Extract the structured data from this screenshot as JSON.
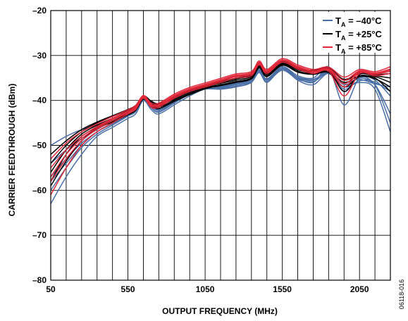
{
  "chart_data": {
    "type": "line",
    "title": "",
    "xlabel": "OUTPUT FREQUENCY (MHz)",
    "ylabel": "CARRIER FEEDTHROUGH (dBm)",
    "xlim": [
      50,
      2250
    ],
    "ylim": [
      -80,
      -20
    ],
    "x_ticks": [
      50,
      550,
      1050,
      1550,
      2050
    ],
    "x_tick_labels": [
      "50",
      "550",
      "1050",
      "1550",
      "2050"
    ],
    "x_minor_step": 100,
    "y_ticks": [
      -80,
      -70,
      -60,
      -50,
      -40,
      -30,
      -20
    ],
    "y_tick_labels": [
      "–80",
      "–70",
      "–60",
      "–50",
      "–40",
      "–30",
      "–20"
    ],
    "grid": true,
    "legend_position": "top-right",
    "figure_id": "06118-016",
    "legend": [
      {
        "base": "T",
        "sub": "A",
        "text": " = –40°C",
        "color": "#4a6fa5"
      },
      {
        "base": "T",
        "sub": "A",
        "text": " = +25°C",
        "color": "#000000"
      },
      {
        "base": "T",
        "sub": "A",
        "text": " = +85°C",
        "color": "#e0283a"
      }
    ],
    "series": [
      {
        "group": "–40°C",
        "color": "#4a6fa5",
        "x": [
          50,
          150,
          250,
          350,
          450,
          550,
          600,
          650,
          700,
          750,
          850,
          950,
          1050,
          1150,
          1250,
          1350,
          1400,
          1450,
          1550,
          1650,
          1750,
          1850,
          1950,
          2050,
          2150,
          2250
        ],
        "curves": [
          [
            -63,
            -57,
            -52,
            -48,
            -46,
            -44,
            -43,
            -40,
            -42,
            -43,
            -41,
            -39,
            -37.5,
            -37.5,
            -37,
            -36,
            -33.5,
            -36,
            -33,
            -35.5,
            -36.5,
            -34,
            -37,
            -36,
            -37.5,
            -47
          ],
          [
            -60,
            -55,
            -50.5,
            -47.5,
            -45.5,
            -43.5,
            -42.5,
            -39.5,
            -41.5,
            -42.5,
            -40.5,
            -38.5,
            -37,
            -37,
            -36.5,
            -35.5,
            -33,
            -35.5,
            -32.5,
            -35,
            -36,
            -33,
            -41,
            -35,
            -36.5,
            -43
          ],
          [
            -57,
            -53,
            -49.5,
            -47,
            -45,
            -43,
            -42,
            -39.5,
            -41,
            -42,
            -40,
            -38,
            -36.8,
            -36.8,
            -36.2,
            -35.2,
            -33,
            -35.2,
            -32.5,
            -34.5,
            -35,
            -32.5,
            -38,
            -34.5,
            -35.5,
            -39
          ],
          [
            -54,
            -51,
            -48.5,
            -46.5,
            -44.5,
            -43,
            -42,
            -39.8,
            -41.2,
            -42.2,
            -40.3,
            -38.3,
            -37,
            -37.2,
            -36.5,
            -35.5,
            -33.3,
            -35.5,
            -33,
            -35,
            -35.5,
            -33.5,
            -36.5,
            -35,
            -36,
            -38
          ],
          [
            -50,
            -48,
            -46.5,
            -45.5,
            -44,
            -42.5,
            -41.5,
            -39.5,
            -41,
            -42,
            -40,
            -38,
            -36.8,
            -37,
            -36.3,
            -35.3,
            -33,
            -35.3,
            -32.8,
            -34.8,
            -35.3,
            -33.8,
            -36,
            -35.3,
            -36.3,
            -37
          ],
          [
            -58,
            -54,
            -50,
            -47,
            -45.2,
            -43.3,
            -42.3,
            -40,
            -41.6,
            -42.6,
            -40.6,
            -38.6,
            -37.3,
            -37.4,
            -36.8,
            -35.8,
            -33.8,
            -35.8,
            -33.3,
            -35.3,
            -35.8,
            -34,
            -37.5,
            -35.6,
            -36.6,
            -45
          ]
        ]
      },
      {
        "group": "+25°C",
        "color": "#000000",
        "x": [
          50,
          150,
          250,
          350,
          450,
          550,
          600,
          650,
          700,
          750,
          850,
          950,
          1050,
          1150,
          1250,
          1350,
          1400,
          1450,
          1550,
          1650,
          1750,
          1850,
          1950,
          2050,
          2150,
          2250
        ],
        "curves": [
          [
            -58,
            -52,
            -48,
            -46,
            -44.5,
            -43,
            -42,
            -39.5,
            -41,
            -41.5,
            -40,
            -38.5,
            -37.2,
            -36.5,
            -35.8,
            -35,
            -32.5,
            -34.5,
            -32,
            -33.5,
            -34,
            -33.5,
            -36,
            -34.5,
            -35,
            -38
          ],
          [
            -56,
            -51,
            -47.5,
            -45.5,
            -44,
            -42.5,
            -41.6,
            -39.3,
            -40.6,
            -41.2,
            -39.7,
            -38.2,
            -37,
            -36.2,
            -35.5,
            -34.7,
            -32.3,
            -34.2,
            -31.8,
            -33.2,
            -33.7,
            -33.2,
            -38,
            -34.2,
            -34.7,
            -36
          ],
          [
            -54,
            -50,
            -47,
            -45,
            -43.6,
            -42.2,
            -41.3,
            -39.1,
            -40.3,
            -40.9,
            -39.4,
            -38,
            -36.8,
            -36,
            -35.2,
            -34.4,
            -32,
            -34,
            -31.6,
            -33,
            -33.5,
            -33,
            -35.5,
            -34,
            -34.5,
            -35
          ],
          [
            -52,
            -49,
            -46.5,
            -44.8,
            -43.4,
            -42,
            -41.1,
            -39,
            -40.1,
            -40.7,
            -39.2,
            -37.8,
            -36.6,
            -35.8,
            -35,
            -34.2,
            -31.8,
            -33.8,
            -31.4,
            -32.8,
            -33.3,
            -32.8,
            -35.3,
            -33.8,
            -34.3,
            -34
          ],
          [
            -59,
            -53.5,
            -49,
            -46.3,
            -44.8,
            -43.2,
            -42.2,
            -39.7,
            -41.2,
            -41.8,
            -40.2,
            -38.7,
            -37.4,
            -36.7,
            -36,
            -35.2,
            -32.7,
            -34.7,
            -32.2,
            -33.7,
            -34.2,
            -33.8,
            -37,
            -34.7,
            -35.2,
            -37
          ]
        ]
      },
      {
        "group": "+85°C",
        "color": "#e0283a",
        "x": [
          50,
          150,
          250,
          350,
          450,
          550,
          600,
          650,
          700,
          750,
          850,
          950,
          1050,
          1150,
          1250,
          1350,
          1400,
          1450,
          1550,
          1650,
          1750,
          1850,
          1950,
          2050,
          2150,
          2250
        ],
        "curves": [
          [
            -61,
            -55,
            -50,
            -47,
            -45,
            -43,
            -42,
            -39.5,
            -41.5,
            -41.5,
            -39.5,
            -38,
            -37,
            -36,
            -35,
            -34.5,
            -32,
            -34,
            -31.5,
            -33,
            -34,
            -33.5,
            -39,
            -34,
            -34.5,
            -34
          ],
          [
            -58,
            -53,
            -49,
            -46.4,
            -44.5,
            -42.7,
            -41.7,
            -39.3,
            -41.2,
            -41.2,
            -39.2,
            -37.7,
            -36.7,
            -35.7,
            -34.7,
            -34.2,
            -31.8,
            -33.7,
            -31.2,
            -32.7,
            -33.7,
            -33.2,
            -37,
            -33.7,
            -34.2,
            -33.5
          ],
          [
            -55,
            -51,
            -48,
            -45.8,
            -44,
            -42.4,
            -41.4,
            -39.1,
            -40.9,
            -40.9,
            -38.9,
            -37.4,
            -36.4,
            -35.4,
            -34.4,
            -33.9,
            -31.5,
            -33.4,
            -31,
            -32.4,
            -33.4,
            -32.9,
            -35.5,
            -33.4,
            -33.9,
            -33
          ],
          [
            -53,
            -49.5,
            -47,
            -45.2,
            -43.6,
            -42.1,
            -41.1,
            -38.9,
            -40.6,
            -40.6,
            -38.6,
            -37.1,
            -36.1,
            -35.1,
            -34.1,
            -33.6,
            -31.2,
            -33.1,
            -30.7,
            -32.1,
            -33.1,
            -32.6,
            -34.8,
            -33.1,
            -33.6,
            -32.5
          ],
          [
            -57,
            -52,
            -48.5,
            -46.1,
            -44.2,
            -42.6,
            -41.6,
            -39.2,
            -41,
            -41,
            -39,
            -37.5,
            -36.5,
            -35.5,
            -34.5,
            -34,
            -31.6,
            -33.5,
            -31.1,
            -32.5,
            -33.5,
            -33,
            -36.3,
            -33.5,
            -34,
            -33.2
          ]
        ]
      }
    ]
  }
}
